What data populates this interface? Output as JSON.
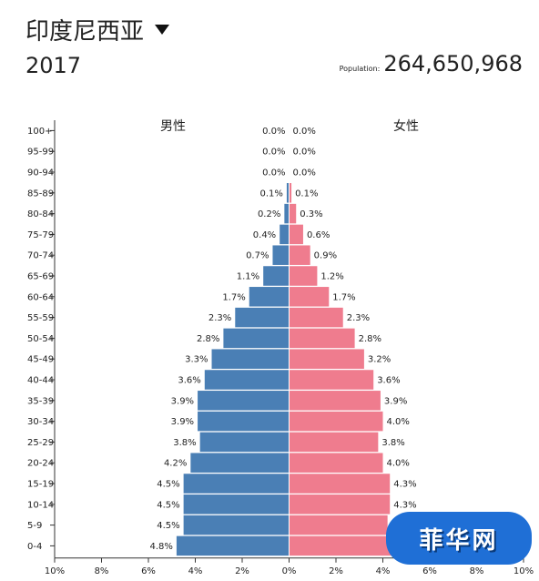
{
  "header": {
    "country": "印度尼西亚",
    "year": "2017",
    "population_label": "Population:",
    "population_value": "264,650,968"
  },
  "chart_data": {
    "type": "bar",
    "orientation": "horizontal-pyramid",
    "categories": [
      "100+",
      "95-99",
      "90-94",
      "85-89",
      "80-84",
      "75-79",
      "70-74",
      "65-69",
      "60-64",
      "55-59",
      "50-54",
      "45-49",
      "40-44",
      "35-39",
      "30-34",
      "25-29",
      "20-24",
      "15-19",
      "10-14",
      "5-9",
      "0-4"
    ],
    "series": [
      {
        "name": "男性",
        "color": "#4a7fb5",
        "values": [
          0.0,
          0.0,
          0.0,
          0.1,
          0.2,
          0.4,
          0.7,
          1.1,
          1.7,
          2.3,
          2.8,
          3.3,
          3.6,
          3.9,
          3.9,
          3.8,
          4.2,
          4.5,
          4.5,
          4.5,
          4.8
        ],
        "labels": [
          "0.0%",
          "0.0%",
          "0.0%",
          "0.1%",
          "0.2%",
          "0.4%",
          "0.7%",
          "1.1%",
          "1.7%",
          "2.3%",
          "2.8%",
          "3.3%",
          "3.6%",
          "3.9%",
          "3.9%",
          "3.8%",
          "4.2%",
          "4.5%",
          "4.5%",
          "4.5%",
          "4.8%"
        ]
      },
      {
        "name": "女性",
        "color": "#ef7c8e",
        "values": [
          0.0,
          0.0,
          0.0,
          0.1,
          0.3,
          0.6,
          0.9,
          1.2,
          1.7,
          2.3,
          2.8,
          3.2,
          3.6,
          3.9,
          4.0,
          3.8,
          4.0,
          4.3,
          4.3,
          4.2,
          4.6
        ],
        "labels": [
          "0.0%",
          "0.0%",
          "0.0%",
          "0.1%",
          "0.3%",
          "0.6%",
          "0.9%",
          "1.2%",
          "1.7%",
          "2.3%",
          "2.8%",
          "3.2%",
          "3.6%",
          "3.9%",
          "4.0%",
          "3.8%",
          "4.0%",
          "4.3%",
          "4.3%",
          "",
          ""
        ]
      }
    ],
    "xlim": [
      -10,
      10
    ],
    "x_ticks": [
      "10%",
      "8%",
      "6%",
      "4%",
      "2%",
      "0%",
      "2%",
      "4%",
      "6%",
      "8%",
      "10%"
    ],
    "grid": false
  },
  "watermark": {
    "text": "菲华网"
  }
}
